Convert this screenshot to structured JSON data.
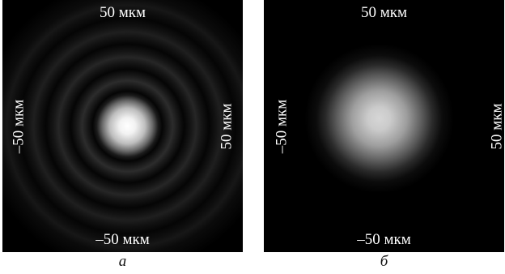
{
  "panels": [
    {
      "top_label": "50 мкм",
      "bottom_label": "–50 мкм",
      "left_label": "–50 мкм",
      "right_label": "50 мкм",
      "caption": "а"
    },
    {
      "top_label": "50 мкм",
      "bottom_label": "–50 мкм",
      "left_label": "–50 мкм",
      "right_label": "50 мкм",
      "caption": "б"
    }
  ]
}
